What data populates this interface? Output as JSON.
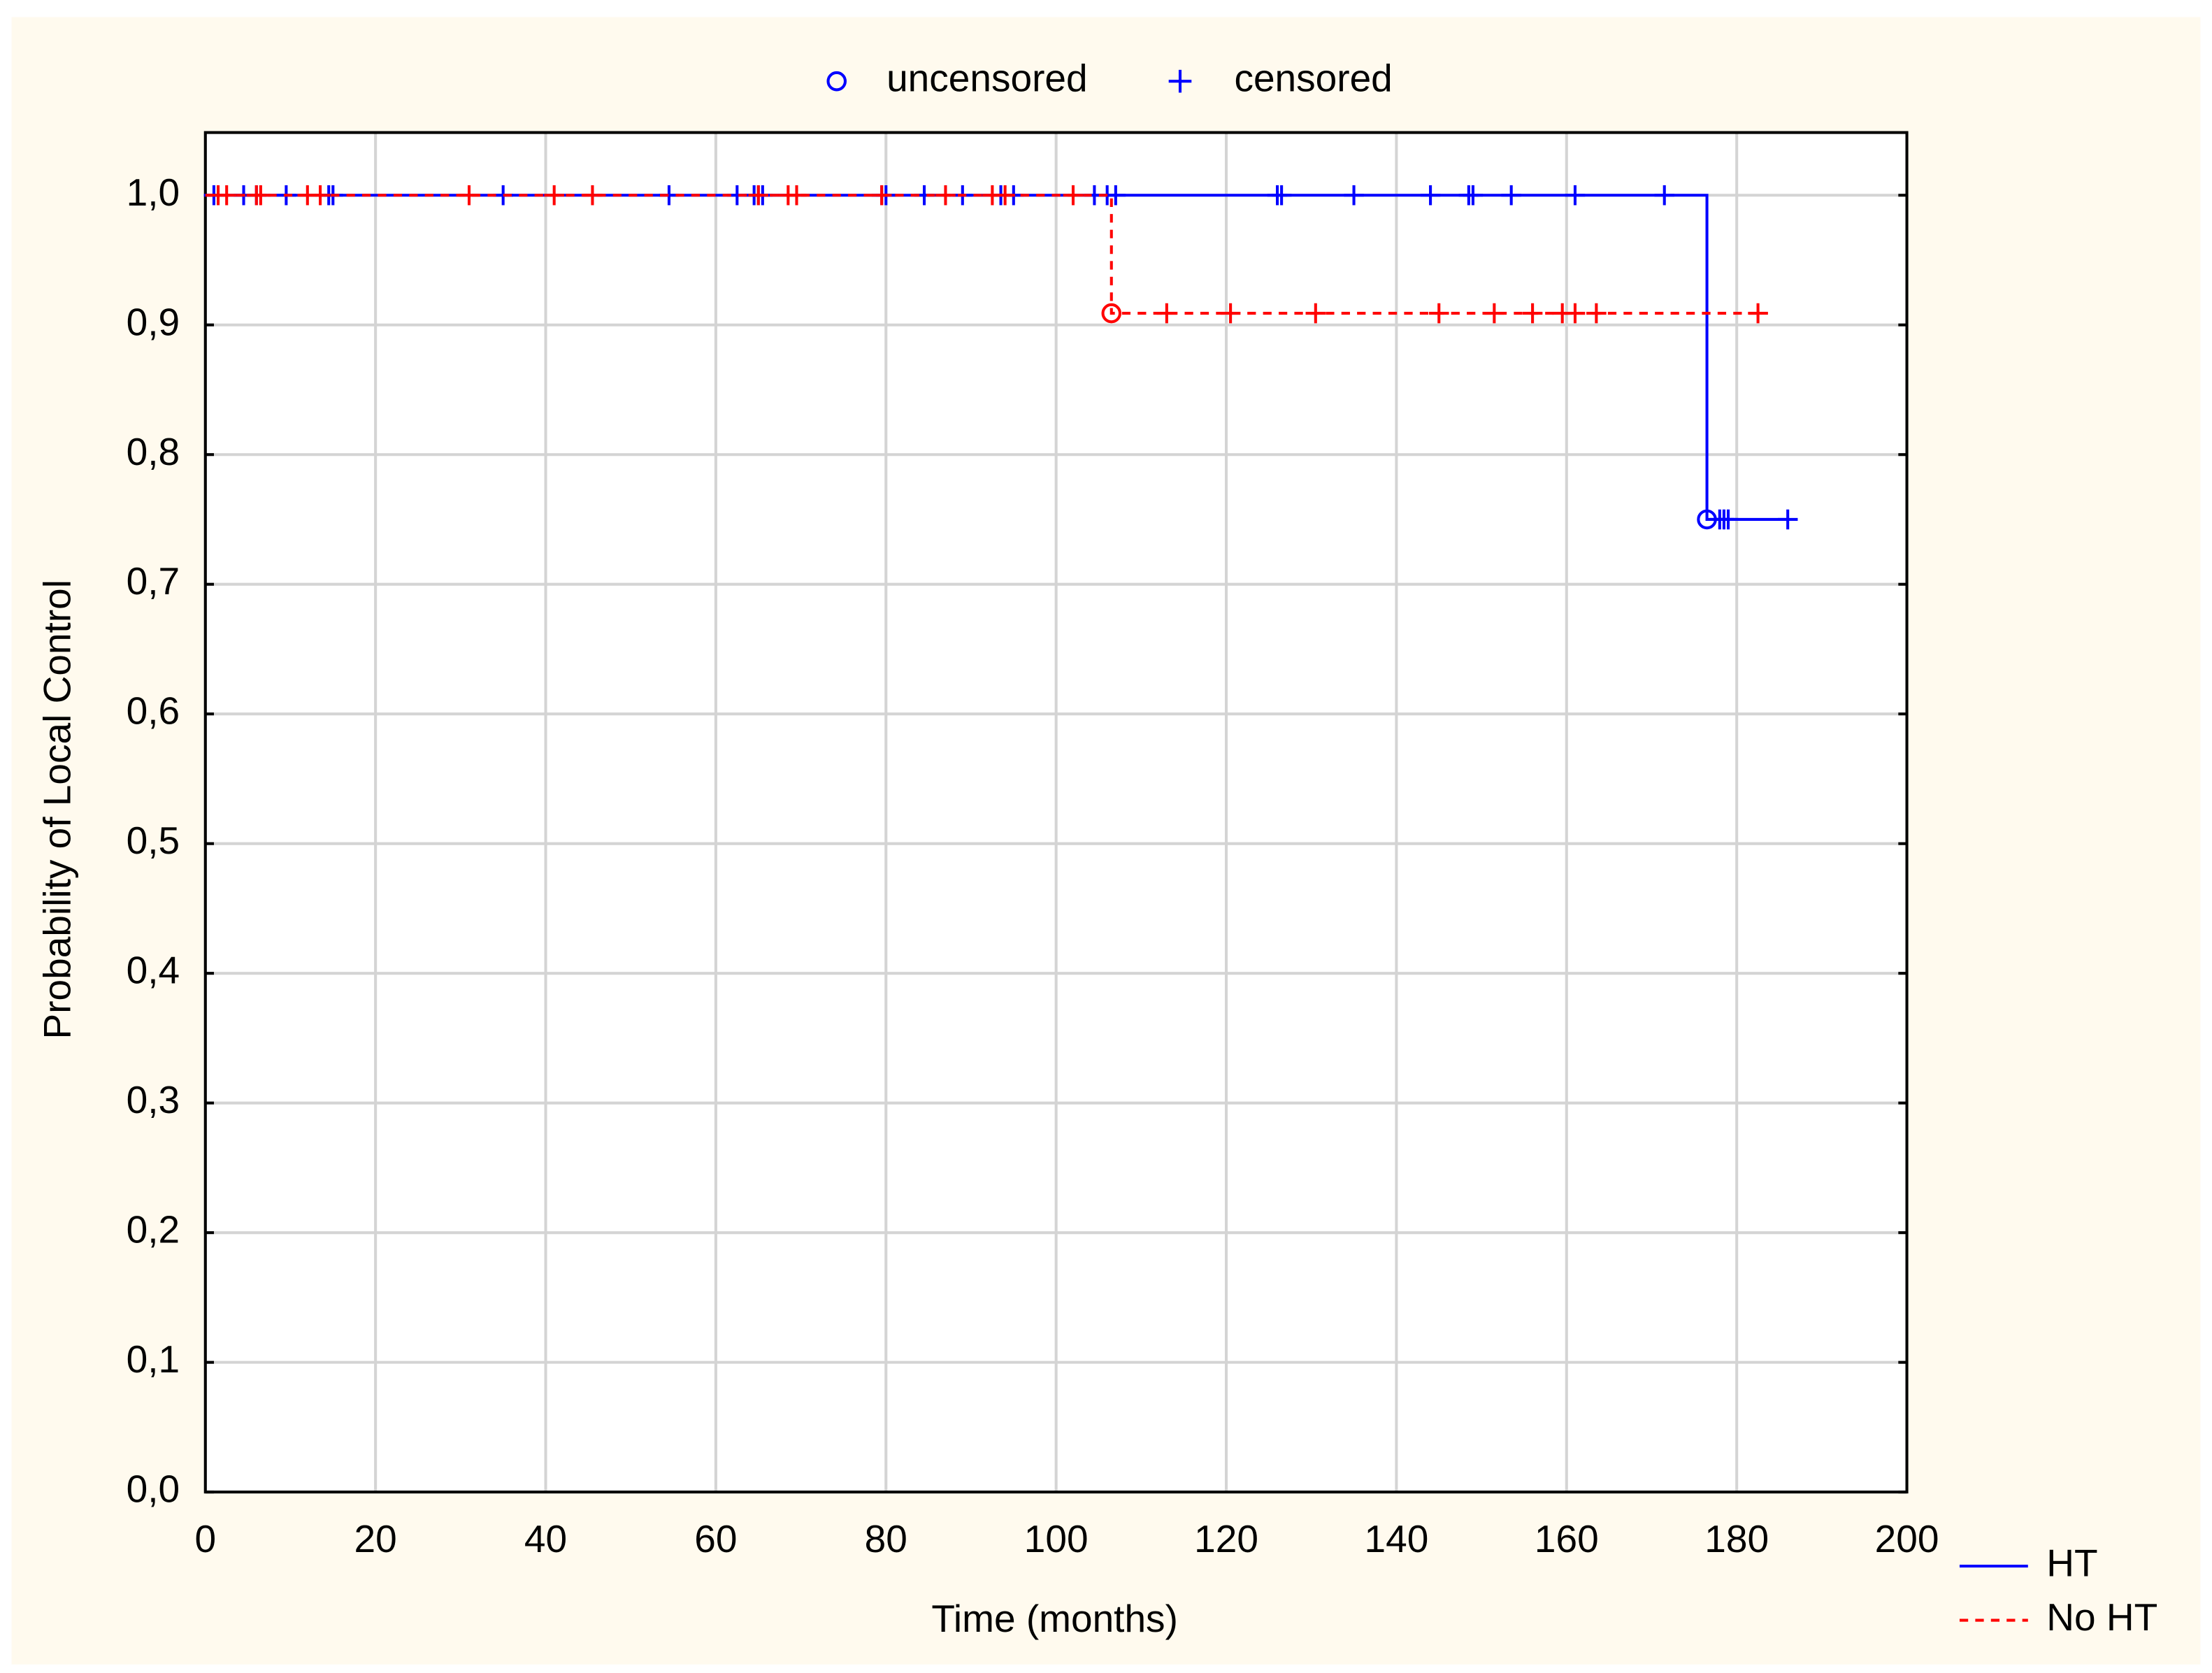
{
  "chart_data": {
    "type": "step",
    "xlabel": "Time (months)",
    "ylabel": "Probability of Local Control",
    "marker_legend": {
      "uncensored": "uncensored",
      "censored": "censored"
    },
    "xlim": [
      0,
      200
    ],
    "xticks": [
      0,
      20,
      40,
      60,
      80,
      100,
      120,
      140,
      160,
      180,
      200
    ],
    "ylim": [
      0,
      1
    ],
    "yticks": [
      {
        "value": 0,
        "label": "0,0"
      },
      {
        "value": 0.1,
        "label": "0,1"
      },
      {
        "value": 0.2,
        "label": "0,2"
      },
      {
        "value": 0.3,
        "label": "0,3"
      },
      {
        "value": 0.4,
        "label": "0,4"
      },
      {
        "value": 0.5,
        "label": "0,5"
      },
      {
        "value": 0.6,
        "label": "0,6"
      },
      {
        "value": 0.7,
        "label": "0,7"
      },
      {
        "value": 0.8,
        "label": "0,8"
      },
      {
        "value": 0.9,
        "label": "0,9"
      },
      {
        "value": 1,
        "label": "1,0"
      }
    ],
    "grid": true,
    "legend": "lower right",
    "series": [
      {
        "name": "HT",
        "color": "#0000ff",
        "dash": false,
        "x": [
          0,
          176.5,
          186
        ],
        "values": [
          1,
          0.75,
          0.75
        ],
        "events_x": [
          176.5
        ],
        "events_values": [
          0.75
        ],
        "censored_x": [
          1,
          4.5,
          6,
          9.5,
          14.5,
          15,
          35,
          54.5,
          62.5,
          64.5,
          65,
          65.5,
          79.5,
          80,
          84.5,
          89,
          93.5,
          95,
          104.5,
          106,
          107,
          126,
          126.5,
          135,
          144,
          148.5,
          149,
          153.5,
          161,
          171.5,
          178,
          178.5,
          179,
          186
        ],
        "censored_values": [
          1,
          1,
          1,
          1,
          1,
          1,
          1,
          1,
          1,
          1,
          1,
          1,
          1,
          1,
          1,
          1,
          1,
          1,
          1,
          1,
          1,
          1,
          1,
          1,
          1,
          1,
          1,
          1,
          1,
          1,
          0.75,
          0.75,
          0.75,
          0.75
        ]
      },
      {
        "name": "No HT",
        "color": "#ff0000",
        "dash": true,
        "x": [
          0,
          106.5,
          182.5
        ],
        "values": [
          1,
          0.909,
          0.909
        ],
        "events_x": [
          106.5
        ],
        "events_values": [
          0.909
        ],
        "censored_x": [
          1.5,
          2.5,
          6,
          6.5,
          12,
          13.5,
          31,
          41,
          45.5,
          65,
          68.5,
          69.5,
          79.5,
          87,
          92.5,
          94,
          102,
          113,
          120.5,
          130.5,
          145,
          151.5,
          156,
          159.5,
          161,
          163.5,
          182.5
        ],
        "censored_values": [
          1,
          1,
          1,
          1,
          1,
          1,
          1,
          1,
          1,
          1,
          1,
          1,
          1,
          1,
          1,
          1,
          1,
          0.909,
          0.909,
          0.909,
          0.909,
          0.909,
          0.909,
          0.909,
          0.909,
          0.909,
          0.909
        ]
      }
    ]
  }
}
